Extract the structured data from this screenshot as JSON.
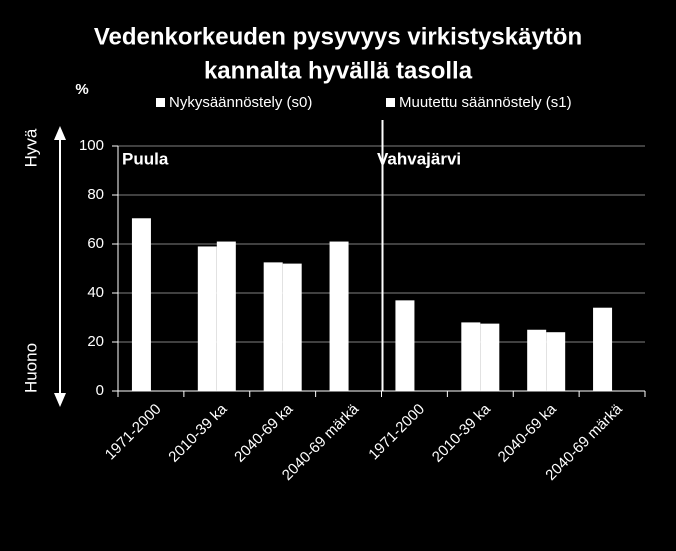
{
  "chart_data": {
    "type": "bar",
    "title": [
      "Vedenkorkeuden pysyvyys virkistyskäytön",
      "kannalta hyvällä tasolla"
    ],
    "y_label": "%",
    "y_top_label": "Hyvä",
    "y_bottom_label": "Huono",
    "group_labels": [
      "Puula",
      "Vahvajärvi"
    ],
    "categories": [
      "1971-2000",
      "2010-39 ka",
      "2040-69 ka",
      "2040-69 märkä",
      "1971-2000",
      "2010-39 ka",
      "2040-69 ka",
      "2040-69 märkä"
    ],
    "series": [
      {
        "name": "Nykysäännöstely (s0)",
        "color": "#ffffff",
        "values": [
          70.5,
          59,
          52.5,
          61,
          37,
          28,
          25,
          34
        ]
      },
      {
        "name": "Muutettu säännöstely (s1)",
        "color": "#ffffff",
        "values": [
          null,
          61,
          52,
          null,
          null,
          27.5,
          24,
          null
        ]
      }
    ],
    "ylim": [
      0,
      100
    ],
    "yticks": [
      0,
      20,
      40,
      60,
      80,
      100
    ],
    "grid": true
  }
}
